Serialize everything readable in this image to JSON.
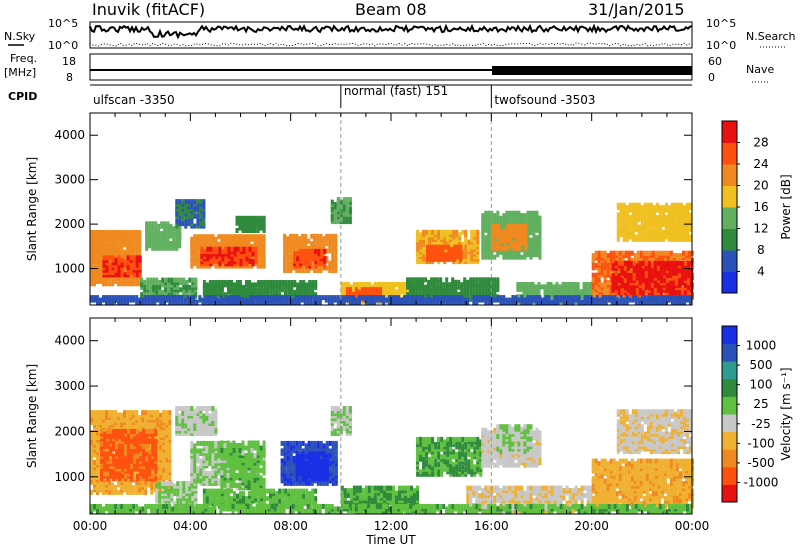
{
  "header": {
    "station": "Inuvik (fitACF)",
    "beam": "Beam 08",
    "date": "31/Jan/2015"
  },
  "status_panels": {
    "nsky_label": "N.Sky",
    "nsky_top": "10^5",
    "nsky_bottom": "10^0",
    "nsearch_label": "N.Search",
    "nsearch_top": "10^5",
    "nsearch_bottom": "10^0",
    "freq_label": "Freq.",
    "freq_unit": "[MHz]",
    "freq_top": "18",
    "freq_bottom": "8",
    "nave_label": "Nave",
    "nave_top": "60",
    "nave_bottom": "0",
    "cpid_label": "CPID",
    "cpid_segments": [
      {
        "name": "ulfscan -3350",
        "start_hour": 0,
        "end_hour": 10
      },
      {
        "name": "normal (fast) 151",
        "start_hour": 10,
        "end_hour": 16
      },
      {
        "name": "twofsound -3503",
        "start_hour": 16,
        "end_hour": 24
      }
    ]
  },
  "colors": {
    "power_scale": [
      "#1a2ee6",
      "#2a52b8",
      "#2f8a3c",
      "#60b060",
      "#f0c020",
      "#f08a20",
      "#ff5010",
      "#e81010"
    ],
    "velocity_scale": [
      "#e81010",
      "#ff5010",
      "#f08a20",
      "#f0b030",
      "#c8c8c8",
      "#60c040",
      "#2f8a3c",
      "#2f9a90",
      "#2a52b8",
      "#1a2ee6"
    ]
  },
  "chart_data": [
    {
      "type": "heatmap",
      "title": "Power",
      "ylabel": "Slant Range [km]",
      "xlabel": "",
      "x_ticks": [
        "00:00",
        "04:00",
        "08:00",
        "12:00",
        "16:00",
        "20:00",
        "00:00"
      ],
      "y_ticks": [
        "1000",
        "2000",
        "3000",
        "4000"
      ],
      "xlim": [
        0,
        24
      ],
      "ylim": [
        180,
        4500
      ],
      "colorbar_label": "Power [dB]",
      "colorbar_ticks": [
        "28",
        "24",
        "20",
        "16",
        "12",
        "8",
        "4"
      ],
      "colorbar_range": [
        0,
        32
      ],
      "bands": [
        {
          "t0": 0.0,
          "t1": 2.0,
          "r0": 600,
          "r1": 1800,
          "v": 22
        },
        {
          "t0": 0.5,
          "t1": 2.0,
          "r0": 800,
          "r1": 1200,
          "v": 28
        },
        {
          "t0": 2.0,
          "t1": 4.2,
          "r0": 300,
          "r1": 700,
          "v": 12
        },
        {
          "t0": 2.2,
          "t1": 3.6,
          "r0": 1400,
          "r1": 2000,
          "v": 14
        },
        {
          "t0": 3.4,
          "t1": 4.6,
          "r0": 1900,
          "r1": 2500,
          "v": 8
        },
        {
          "t0": 4.0,
          "t1": 7.0,
          "r0": 1000,
          "r1": 1700,
          "v": 22
        },
        {
          "t0": 4.4,
          "t1": 6.6,
          "r0": 1050,
          "r1": 1400,
          "v": 28
        },
        {
          "t0": 5.8,
          "t1": 7.0,
          "r0": 1800,
          "r1": 2100,
          "v": 10
        },
        {
          "t0": 4.5,
          "t1": 9.0,
          "r0": 300,
          "r1": 650,
          "v": 10
        },
        {
          "t0": 7.7,
          "t1": 9.8,
          "r0": 900,
          "r1": 1700,
          "v": 22
        },
        {
          "t0": 8.1,
          "t1": 9.4,
          "r0": 1000,
          "r1": 1350,
          "v": 27
        },
        {
          "t0": 9.6,
          "t1": 10.4,
          "r0": 2000,
          "r1": 2500,
          "v": 12
        },
        {
          "t0": 10.0,
          "t1": 12.8,
          "r0": 200,
          "r1": 600,
          "v": 18
        },
        {
          "t0": 10.2,
          "t1": 11.6,
          "r0": 250,
          "r1": 500,
          "v": 26
        },
        {
          "t0": 13.0,
          "t1": 15.4,
          "r0": 1100,
          "r1": 1800,
          "v": 20
        },
        {
          "t0": 13.4,
          "t1": 14.8,
          "r0": 1150,
          "r1": 1450,
          "v": 26
        },
        {
          "t0": 12.6,
          "t1": 16.2,
          "r0": 250,
          "r1": 700,
          "v": 10
        },
        {
          "t0": 15.6,
          "t1": 18.0,
          "r0": 1200,
          "r1": 2200,
          "v": 14
        },
        {
          "t0": 16.0,
          "t1": 17.4,
          "r0": 1400,
          "r1": 1900,
          "v": 22
        },
        {
          "t0": 17.0,
          "t1": 20.0,
          "r0": 200,
          "r1": 600,
          "v": 14
        },
        {
          "t0": 20.0,
          "t1": 24.0,
          "r0": 300,
          "r1": 1300,
          "v": 24
        },
        {
          "t0": 20.8,
          "t1": 24.0,
          "r0": 400,
          "r1": 1100,
          "v": 29
        },
        {
          "t0": 21.0,
          "t1": 24.0,
          "r0": 1600,
          "r1": 2400,
          "v": 18
        },
        {
          "t0": 0.0,
          "t1": 24.0,
          "r0": 180,
          "r1": 300,
          "v": 6
        }
      ]
    },
    {
      "type": "heatmap",
      "title": "Velocity",
      "ylabel": "Slant Range [km]",
      "xlabel": "Time UT",
      "x_ticks": [
        "00:00",
        "04:00",
        "08:00",
        "12:00",
        "16:00",
        "20:00",
        "00:00"
      ],
      "y_ticks": [
        "1000",
        "2000",
        "3000",
        "4000"
      ],
      "xlim": [
        0,
        24
      ],
      "ylim": [
        180,
        4500
      ],
      "colorbar_label": "Velocity [m s⁻¹]",
      "colorbar_ticks": [
        "1000",
        "500",
        "100",
        "25",
        "-25",
        "-100",
        "-500",
        "-1000"
      ],
      "colorbar_range": [
        -1200,
        1200
      ],
      "bands": [
        {
          "t0": 0.0,
          "t1": 3.2,
          "r0": 600,
          "r1": 2400,
          "v": -400
        },
        {
          "t0": 0.4,
          "t1": 2.6,
          "r0": 900,
          "r1": 2000,
          "v": -800
        },
        {
          "t0": 2.6,
          "t1": 4.2,
          "r0": 300,
          "r1": 800,
          "v": 0
        },
        {
          "t0": 3.4,
          "t1": 5.0,
          "r0": 1900,
          "r1": 2500,
          "v": -60
        },
        {
          "t0": 4.0,
          "t1": 5.8,
          "r0": 800,
          "r1": 1700,
          "v": 0
        },
        {
          "t0": 5.2,
          "t1": 7.0,
          "r0": 700,
          "r1": 1700,
          "v": 120
        },
        {
          "t0": 4.5,
          "t1": 9.0,
          "r0": 300,
          "r1": 650,
          "v": 150
        },
        {
          "t0": 7.6,
          "t1": 9.8,
          "r0": 800,
          "r1": 1700,
          "v": 900
        },
        {
          "t0": 8.2,
          "t1": 9.4,
          "r0": 900,
          "r1": 1500,
          "v": 1200
        },
        {
          "t0": 9.6,
          "t1": 10.4,
          "r0": 1900,
          "r1": 2500,
          "v": 0
        },
        {
          "t0": 10.0,
          "t1": 13.0,
          "r0": 200,
          "r1": 700,
          "v": 250
        },
        {
          "t0": 13.0,
          "t1": 15.6,
          "r0": 1000,
          "r1": 1800,
          "v": 250
        },
        {
          "t0": 15.6,
          "t1": 18.0,
          "r0": 1200,
          "r1": 2000,
          "v": -150
        },
        {
          "t0": 16.2,
          "t1": 17.6,
          "r0": 1500,
          "r1": 2100,
          "v": 0
        },
        {
          "t0": 15.0,
          "t1": 20.0,
          "r0": 200,
          "r1": 700,
          "v": -200
        },
        {
          "t0": 20.0,
          "t1": 24.0,
          "r0": 300,
          "r1": 1300,
          "v": -400
        },
        {
          "t0": 21.0,
          "t1": 24.0,
          "r0": 1500,
          "r1": 2400,
          "v": -200
        },
        {
          "t0": 0.0,
          "t1": 24.0,
          "r0": 180,
          "r1": 300,
          "v": 150
        }
      ]
    }
  ]
}
